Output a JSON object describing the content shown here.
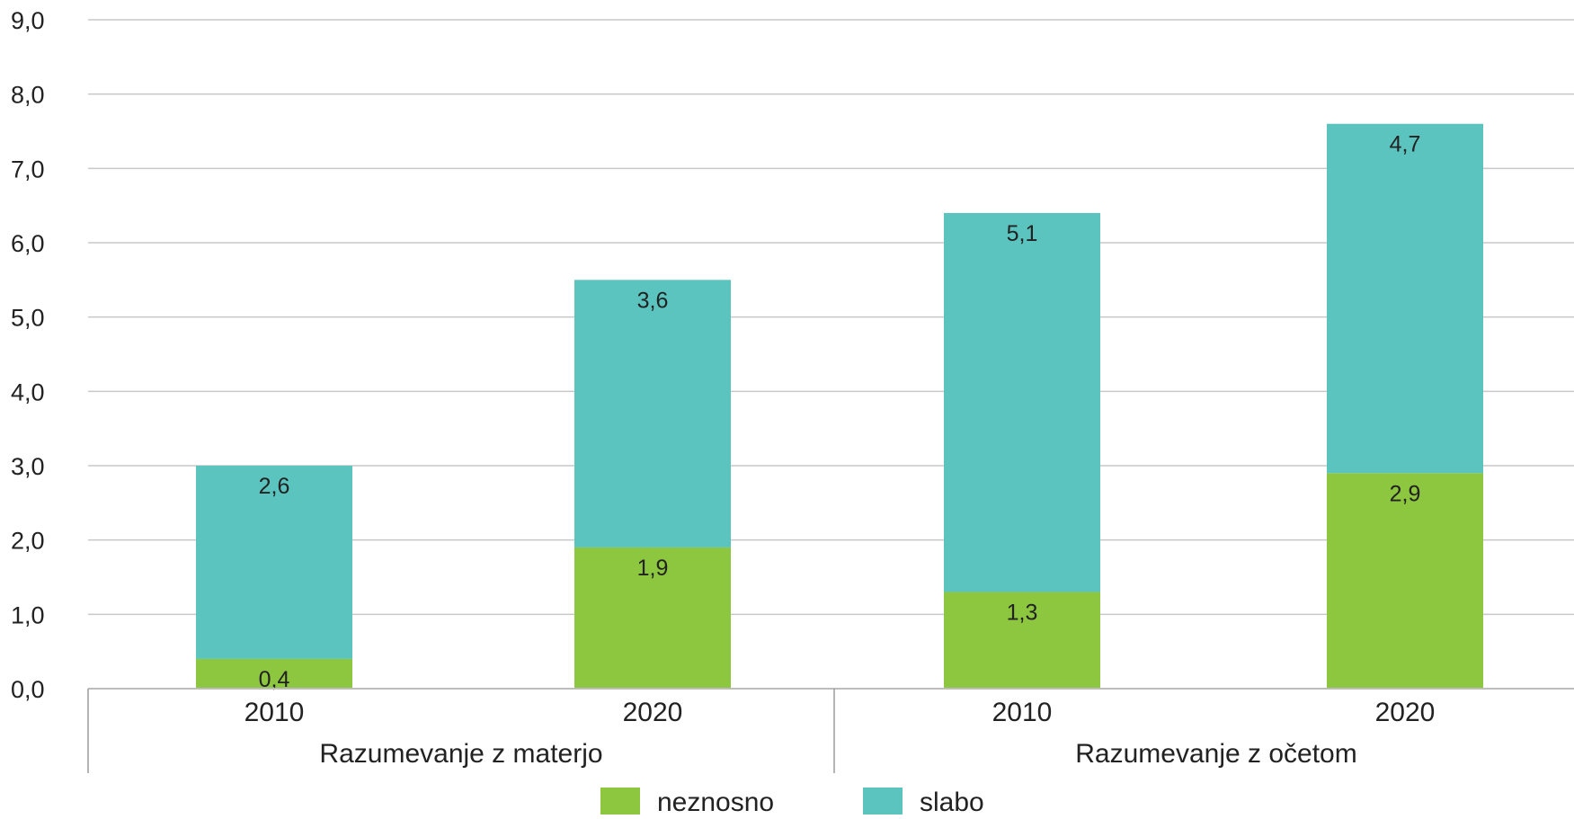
{
  "chart_data": {
    "type": "bar",
    "stacked": true,
    "categories": [
      "2010",
      "2020",
      "2010",
      "2020"
    ],
    "groups": [
      {
        "label": "Razumevanje z materjo",
        "categories": [
          0,
          1
        ]
      },
      {
        "label": "Razumevanje z očetom",
        "categories": [
          2,
          3
        ]
      }
    ],
    "series": [
      {
        "name": "neznosno",
        "color": "#8dc63f",
        "values": [
          0.4,
          1.9,
          1.3,
          2.9
        ],
        "labels": [
          "0,4",
          "1,9",
          "1,3",
          "2,9"
        ]
      },
      {
        "name": "slabo",
        "color": "#5bc4bf",
        "values": [
          2.6,
          3.6,
          5.1,
          4.7
        ],
        "labels": [
          "2,6",
          "3,6",
          "5,1",
          "4,7"
        ]
      }
    ],
    "ylim": [
      0,
      9
    ],
    "yticks": [
      "0,0",
      "1,0",
      "2,0",
      "3,0",
      "4,0",
      "5,0",
      "6,0",
      "7,0",
      "8,0",
      "9,0"
    ],
    "grid": true,
    "legend_position": "bottom"
  }
}
